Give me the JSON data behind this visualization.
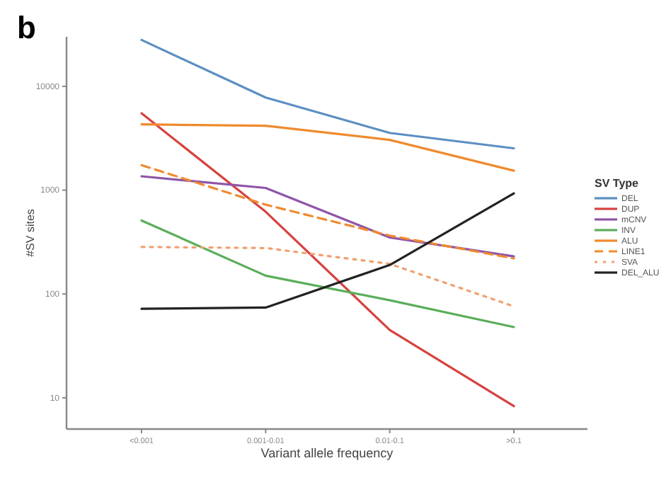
{
  "chart_data": {
    "type": "line",
    "title": "b",
    "xlabel": "Variant allele frequency",
    "ylabel": "#SV sites",
    "legend_title": "SV Type",
    "legend": "right",
    "grid": false,
    "log": "y",
    "categories": [
      "<0.001",
      "0.001-0.01",
      "0.01-0.1",
      ">0.1"
    ],
    "ylim": [
      5,
      30000
    ],
    "yticks": [
      10,
      100,
      1000,
      10000
    ],
    "series": [
      {
        "name": "DEL",
        "color": "#5b8fc2",
        "line_style": "solid",
        "values": [
          28000,
          7800,
          3560,
          2530
        ]
      },
      {
        "name": "DUP",
        "color": "#d6423f",
        "line_style": "solid",
        "values": [
          5500,
          620,
          45,
          8.3
        ]
      },
      {
        "name": "mCNV",
        "color": "#8e55a8",
        "line_style": "solid",
        "values": [
          1360,
          1050,
          350,
          230
        ]
      },
      {
        "name": "INV",
        "color": "#5aae5a",
        "line_style": "solid",
        "values": [
          510,
          150,
          87,
          48
        ]
      },
      {
        "name": "ALU",
        "color": "#f08a2e",
        "line_style": "solid",
        "values": [
          4300,
          4170,
          3050,
          1540
        ]
      },
      {
        "name": "LINE1",
        "color": "#f08a2e",
        "line_style": "dashed",
        "values": [
          1740,
          725,
          365,
          220
        ]
      },
      {
        "name": "SVA",
        "color": "#f0a070",
        "line_style": "dotted",
        "values": [
          284,
          277,
          195,
          76
        ]
      },
      {
        "name": "DEL_ALU",
        "color": "#222222",
        "line_style": "solid",
        "values": [
          72,
          74,
          190,
          930
        ]
      }
    ]
  }
}
